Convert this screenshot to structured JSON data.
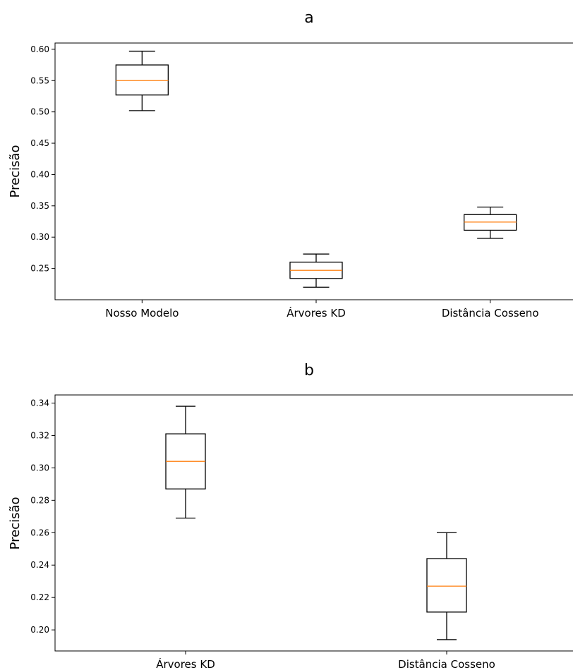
{
  "chart_data": [
    {
      "type": "box",
      "title": "a",
      "ylabel": "Precisão",
      "ylim": [
        0.2,
        0.61
      ],
      "yticks": [
        0.25,
        0.3,
        0.35,
        0.4,
        0.45,
        0.5,
        0.55,
        0.6
      ],
      "categories": [
        "Nosso Modelo",
        "Árvores KD",
        "Distância Cosseno"
      ],
      "boxes": [
        {
          "whisker_low": 0.502,
          "q1": 0.527,
          "median": 0.55,
          "q3": 0.575,
          "whisker_high": 0.597
        },
        {
          "whisker_low": 0.22,
          "q1": 0.234,
          "median": 0.247,
          "q3": 0.26,
          "whisker_high": 0.273
        },
        {
          "whisker_low": 0.298,
          "q1": 0.311,
          "median": 0.324,
          "q3": 0.336,
          "whisker_high": 0.348
        }
      ],
      "median_color": "#ff7f0e",
      "box_color": "#000000"
    },
    {
      "type": "box",
      "title": "b",
      "ylabel": "Precisão",
      "ylim": [
        0.187,
        0.345
      ],
      "yticks": [
        0.2,
        0.22,
        0.24,
        0.26,
        0.28,
        0.3,
        0.32,
        0.34
      ],
      "categories": [
        "Árvores KD",
        "Distância Cosseno"
      ],
      "boxes": [
        {
          "whisker_low": 0.269,
          "q1": 0.287,
          "median": 0.304,
          "q3": 0.321,
          "whisker_high": 0.338
        },
        {
          "whisker_low": 0.194,
          "q1": 0.211,
          "median": 0.227,
          "q3": 0.244,
          "whisker_high": 0.26
        }
      ],
      "median_color": "#ff7f0e",
      "box_color": "#000000"
    }
  ]
}
